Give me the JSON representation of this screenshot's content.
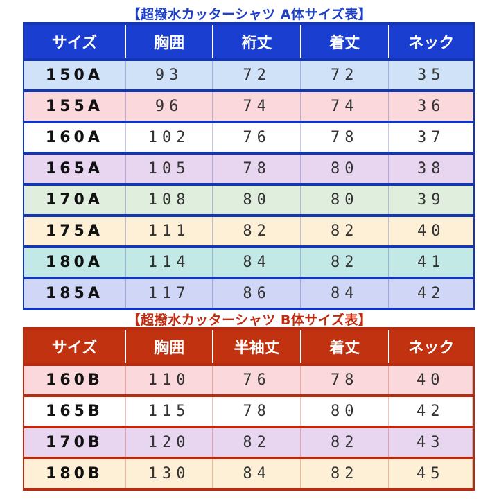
{
  "table_a": {
    "title": "【超撥水カッターシャツ A体サイズ表】",
    "headers": [
      "サイズ",
      "胸囲",
      "裄丈",
      "着丈",
      "ネック"
    ],
    "row_colors": [
      "#cfe2f8",
      "#fbd8dc",
      "#ffffff",
      "#e8d6f1",
      "#e0eede",
      "#fdf0d6",
      "#c3e9e7",
      "#d0d6f6"
    ],
    "rows": [
      [
        "150A",
        "93",
        "72",
        "72",
        "35"
      ],
      [
        "155A",
        "96",
        "74",
        "74",
        "36"
      ],
      [
        "160A",
        "102",
        "76",
        "78",
        "37"
      ],
      [
        "165A",
        "105",
        "78",
        "80",
        "38"
      ],
      [
        "170A",
        "108",
        "80",
        "80",
        "39"
      ],
      [
        "175A",
        "111",
        "82",
        "82",
        "40"
      ],
      [
        "180A",
        "114",
        "84",
        "82",
        "41"
      ],
      [
        "185A",
        "117",
        "86",
        "84",
        "42"
      ]
    ]
  },
  "table_b": {
    "title": "【超撥水カッターシャツ B体サイズ表】",
    "headers": [
      "サイズ",
      "胸囲",
      "半袖丈",
      "着丈",
      "ネック"
    ],
    "row_colors": [
      "#fbd8dc",
      "#ffffff",
      "#e8d6f1",
      "#fdf0d6"
    ],
    "rows": [
      [
        "160B",
        "110",
        "76",
        "78",
        "40"
      ],
      [
        "165B",
        "115",
        "78",
        "80",
        "42"
      ],
      [
        "170B",
        "120",
        "82",
        "82",
        "43"
      ],
      [
        "180B",
        "130",
        "84",
        "82",
        "45"
      ]
    ]
  }
}
